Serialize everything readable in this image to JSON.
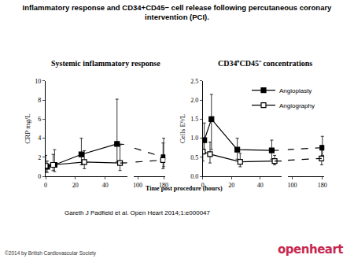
{
  "title": "Inflammatory response and CD34+CD45− cell release following percutaneous coronary intervention (PCI).",
  "citation": "Gareth J Padfield et al. Open Heart 2014;1:e000047",
  "copyright": "©2014 by British Cardiovascular Society",
  "logo": "openheart",
  "shared_x_label": "Time post procedure (hours)",
  "chart_data": [
    {
      "type": "line",
      "title": "Systemic inflammatory response",
      "y_label": "CRP mg/L",
      "xlim_segments": [
        [
          0,
          55
        ],
        [
          88,
          185
        ]
      ],
      "xticks_segments": [
        [
          0,
          20,
          40
        ],
        [
          100,
          180
        ]
      ],
      "ylim": [
        0,
        10
      ],
      "yticks": [
        0,
        2,
        4,
        6,
        8,
        10
      ],
      "grid": false,
      "series": [
        {
          "name": "Angioplasty",
          "color": "#000000",
          "marker": "square",
          "x": [
            1,
            6,
            24,
            48,
            180
          ],
          "values": [
            1.0,
            1.2,
            2.3,
            3.4,
            2.0
          ],
          "lower": [
            0.4,
            0.5,
            1.2,
            1.5,
            1.0
          ],
          "upper": [
            1.6,
            2.8,
            4.0,
            8.1,
            4.0
          ]
        },
        {
          "name": "Angiography",
          "color": "#000000",
          "marker": "square-open",
          "x": [
            0,
            5,
            26,
            50,
            178
          ],
          "values": [
            1.1,
            1.2,
            1.5,
            1.4,
            1.7
          ],
          "lower": [
            0.5,
            0.6,
            0.8,
            0.6,
            0.8
          ],
          "upper": [
            2.2,
            2.3,
            2.7,
            3.3,
            3.5
          ]
        }
      ]
    },
    {
      "type": "line",
      "title": "CD34⁺CD45⁻ concentrations",
      "y_label": "Cells E⁶/L",
      "xlim_segments": [
        [
          0,
          55
        ],
        [
          88,
          185
        ]
      ],
      "xticks_segments": [
        [
          0,
          20,
          40
        ],
        [
          100,
          180
        ]
      ],
      "ylim": [
        0,
        2.5
      ],
      "yticks": [
        {
          "value": 0,
          "label": "0.0"
        },
        0.5,
        {
          "value": 1,
          "label": "1.0"
        },
        1.5,
        {
          "value": 2,
          "label": "2.0"
        },
        2.5
      ],
      "grid": false,
      "legend": "top right",
      "series": [
        {
          "name": "Angioplasty",
          "color": "#000000",
          "marker": "square",
          "x": [
            1,
            6,
            24,
            48,
            180
          ],
          "values": [
            0.95,
            1.5,
            0.7,
            0.68,
            0.75
          ],
          "lower": [
            0.6,
            0.7,
            0.45,
            0.45,
            0.55
          ],
          "upper": [
            1.4,
            2.15,
            1.0,
            0.95,
            1.05
          ]
        },
        {
          "name": "Angiography",
          "color": "#000000",
          "marker": "square-open",
          "x": [
            0,
            5,
            26,
            50,
            178
          ],
          "values": [
            0.65,
            0.58,
            0.38,
            0.4,
            0.47
          ],
          "lower": [
            0.4,
            0.35,
            0.25,
            0.3,
            0.3
          ],
          "upper": [
            1.0,
            0.9,
            0.6,
            0.55,
            0.7
          ]
        }
      ]
    }
  ]
}
